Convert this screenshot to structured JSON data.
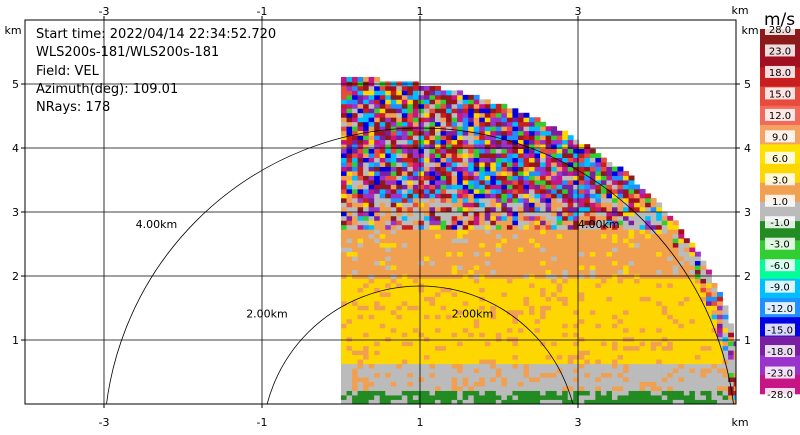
{
  "info": {
    "start_time": "Start time: 2022/04/14 22:34:52.720",
    "instrument": "WLS200s-181/WLS200s-181",
    "field": "Field: VEL",
    "azimuth": "Azimuth(deg): 109.01",
    "nrays": "NRays: 178"
  },
  "colorbar": {
    "unit": "m/s",
    "labels": [
      "28.0",
      "23.0",
      "18.0",
      "15.0",
      "12.0",
      "9.0",
      "6.0",
      "3.0",
      "1.0",
      "-1.0",
      "-3.0",
      "-6.0",
      "-9.0",
      "-12.0",
      "-15.0",
      "-18.0",
      "-23.0",
      "-28.0"
    ],
    "colors": [
      "#8b1a1a",
      "#a01020",
      "#c81e1e",
      "#e64b3c",
      "#f46a5a",
      "#f4a262",
      "#ffe100",
      "#ffd700",
      "#f0a050",
      "#bbbbbb",
      "#228b22",
      "#32cd32",
      "#00ff99",
      "#00bfff",
      "#1e90ff",
      "#0000e0",
      "#7b1fa2",
      "#9933cc",
      "#c71585"
    ]
  },
  "chart_data": {
    "type": "heatmap",
    "title": "",
    "xlabel": "km",
    "ylabel": "km",
    "x_unit_label": "km",
    "y_unit_label": "km",
    "xlim": [
      -4.0,
      5.0
    ],
    "ylim": [
      0.0,
      6.0
    ],
    "x_ticks": [
      -3,
      -1,
      1,
      3
    ],
    "y_ticks": [
      1,
      2,
      3,
      4,
      5
    ],
    "grid": true,
    "range_rings": [
      {
        "radius_km": 2.0,
        "label": "2.00km"
      },
      {
        "radius_km": 4.0,
        "label": "4.00km"
      }
    ],
    "sector": {
      "angle_start_deg": 0,
      "angle_end_deg": 90,
      "max_range_km": 5.1
    },
    "velocity_bands": [
      {
        "y_from": 0.0,
        "y_to": 0.15,
        "value": -2.0,
        "color_name": "green"
      },
      {
        "y_from": 0.15,
        "y_to": 0.6,
        "value": 0.0,
        "color_name": "gray"
      },
      {
        "y_from": 0.6,
        "y_to": 1.9,
        "value": 4.0,
        "color_name": "gold"
      },
      {
        "y_from": 1.9,
        "y_to": 2.7,
        "value": 2.0,
        "color_name": "orange"
      },
      {
        "y_from": 2.7,
        "y_to": 5.1,
        "value": "noisy",
        "color_name": "mixed"
      }
    ]
  }
}
